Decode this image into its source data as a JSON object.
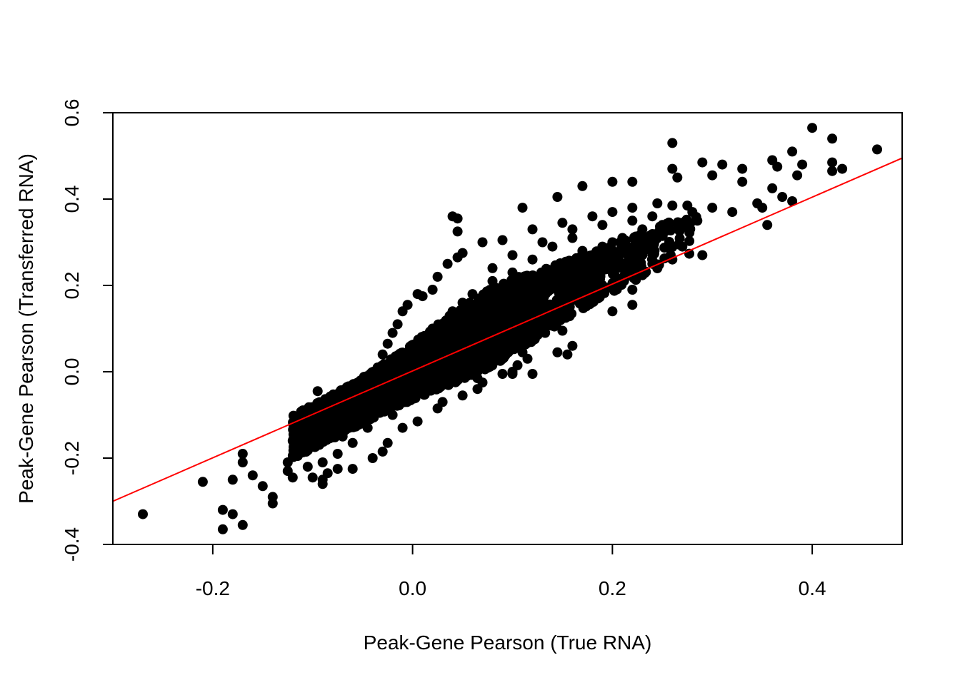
{
  "chart_data": {
    "type": "scatter",
    "title": "",
    "xlabel": "Peak-Gene Pearson (True RNA)",
    "ylabel": "Peak-Gene Pearson (Transferred RNA)",
    "xlim": [
      -0.3,
      0.49
    ],
    "ylim": [
      -0.4,
      0.6
    ],
    "x_ticks": [
      -0.2,
      0.0,
      0.2,
      0.4
    ],
    "x_tick_labels": [
      "-0.2",
      "0.0",
      "0.2",
      "0.4"
    ],
    "y_ticks": [
      -0.4,
      -0.2,
      0.0,
      0.2,
      0.4,
      0.6
    ],
    "y_tick_labels": [
      "-0.4",
      "-0.2",
      "0.0",
      "0.2",
      "0.4",
      "0.6"
    ],
    "grid": false,
    "legend": "none",
    "point_color": "#000000",
    "fit_line": {
      "color": "#ff0000",
      "points": [
        [
          -0.3,
          -0.3
        ],
        [
          0.49,
          0.495
        ]
      ]
    },
    "series": [
      {
        "points": [
          [
            -0.27,
            -0.33
          ],
          [
            -0.21,
            -0.255
          ],
          [
            -0.19,
            -0.365
          ],
          [
            -0.19,
            -0.32
          ],
          [
            -0.18,
            -0.33
          ],
          [
            -0.17,
            -0.355
          ],
          [
            -0.18,
            -0.25
          ],
          [
            -0.17,
            -0.21
          ],
          [
            -0.16,
            -0.24
          ],
          [
            -0.14,
            -0.305
          ],
          [
            -0.14,
            -0.29
          ],
          [
            -0.095,
            -0.045
          ],
          [
            -0.15,
            -0.265
          ],
          [
            -0.17,
            -0.19
          ],
          [
            0.04,
            0.36
          ],
          [
            0.045,
            0.355
          ],
          [
            0.045,
            0.325
          ],
          [
            0.11,
            0.38
          ],
          [
            0.145,
            0.405
          ],
          [
            0.17,
            0.43
          ],
          [
            0.2,
            0.44
          ],
          [
            0.22,
            0.44
          ],
          [
            0.26,
            0.53
          ],
          [
            0.26,
            0.47
          ],
          [
            0.265,
            0.45
          ],
          [
            0.29,
            0.485
          ],
          [
            0.3,
            0.455
          ],
          [
            0.31,
            0.48
          ],
          [
            0.33,
            0.47
          ],
          [
            0.33,
            0.44
          ],
          [
            0.345,
            0.39
          ],
          [
            0.36,
            0.49
          ],
          [
            0.365,
            0.475
          ],
          [
            0.38,
            0.51
          ],
          [
            0.39,
            0.48
          ],
          [
            0.385,
            0.455
          ],
          [
            0.36,
            0.425
          ],
          [
            0.37,
            0.405
          ],
          [
            0.38,
            0.395
          ],
          [
            0.4,
            0.565
          ],
          [
            0.42,
            0.54
          ],
          [
            0.42,
            0.485
          ],
          [
            0.42,
            0.465
          ],
          [
            0.43,
            0.47
          ],
          [
            0.465,
            0.515
          ],
          [
            0.3,
            0.38
          ],
          [
            0.32,
            0.37
          ],
          [
            0.35,
            0.38
          ],
          [
            0.355,
            0.34
          ],
          [
            0.285,
            0.35
          ],
          [
            0.29,
            0.27
          ],
          [
            0.27,
            0.29
          ],
          [
            0.26,
            0.26
          ],
          [
            0.22,
            0.19
          ],
          [
            0.22,
            0.155
          ],
          [
            0.2,
            0.14
          ],
          [
            0.175,
            0.155
          ],
          [
            0.17,
            0.16
          ],
          [
            0.15,
            0.14
          ],
          [
            0.15,
            0.095
          ],
          [
            0.13,
            0.1
          ],
          [
            0.16,
            0.06
          ],
          [
            0.155,
            0.04
          ],
          [
            0.145,
            0.045
          ],
          [
            0.115,
            0.03
          ],
          [
            0.11,
            0.045
          ],
          [
            0.105,
            0.015
          ],
          [
            0.1,
            0.0
          ],
          [
            0.12,
            -0.005
          ],
          [
            0.1,
            -0.005
          ],
          [
            0.09,
            -0.005
          ],
          [
            0.065,
            -0.015
          ],
          [
            0.07,
            -0.025
          ],
          [
            0.065,
            -0.04
          ],
          [
            0.05,
            -0.055
          ],
          [
            0.03,
            -0.07
          ],
          [
            0.025,
            -0.085
          ],
          [
            0.005,
            -0.115
          ],
          [
            -0.01,
            -0.13
          ],
          [
            -0.025,
            -0.165
          ],
          [
            -0.03,
            -0.185
          ],
          [
            -0.04,
            -0.2
          ],
          [
            -0.06,
            -0.225
          ],
          [
            -0.075,
            -0.225
          ],
          [
            -0.085,
            -0.235
          ],
          [
            -0.09,
            -0.25
          ],
          [
            -0.09,
            -0.26
          ],
          [
            -0.1,
            -0.245
          ],
          [
            -0.12,
            -0.245
          ],
          [
            -0.125,
            -0.23
          ],
          [
            -0.125,
            -0.21
          ],
          [
            -0.115,
            -0.195
          ],
          [
            -0.12,
            -0.16
          ],
          [
            -0.11,
            -0.12
          ],
          [
            -0.1,
            -0.115
          ],
          [
            -0.09,
            -0.09
          ],
          [
            -0.07,
            -0.06
          ],
          [
            -0.055,
            -0.045
          ],
          [
            -0.04,
            -0.015
          ],
          [
            -0.035,
            0.01
          ],
          [
            -0.03,
            0.04
          ],
          [
            -0.025,
            0.065
          ],
          [
            -0.02,
            0.09
          ],
          [
            -0.015,
            0.11
          ],
          [
            -0.01,
            0.14
          ],
          [
            -0.005,
            0.155
          ],
          [
            0.005,
            0.18
          ],
          [
            0.01,
            0.175
          ],
          [
            0.02,
            0.19
          ],
          [
            0.025,
            0.22
          ],
          [
            0.035,
            0.25
          ],
          [
            0.045,
            0.265
          ],
          [
            0.05,
            0.275
          ],
          [
            0.07,
            0.3
          ],
          [
            0.09,
            0.305
          ],
          [
            0.12,
            0.33
          ],
          [
            0.15,
            0.345
          ],
          [
            0.18,
            0.36
          ],
          [
            0.2,
            0.37
          ],
          [
            0.22,
            0.38
          ],
          [
            0.245,
            0.39
          ],
          [
            0.26,
            0.385
          ],
          [
            0.275,
            0.385
          ],
          [
            0.28,
            0.37
          ],
          [
            0.25,
            0.32
          ],
          [
            0.235,
            0.3
          ],
          [
            0.23,
            0.27
          ],
          [
            0.24,
            0.25
          ],
          [
            0.205,
            0.24
          ],
          [
            0.185,
            0.195
          ],
          [
            0.175,
            0.205
          ],
          [
            0.165,
            0.18
          ],
          [
            0.13,
            0.15
          ],
          [
            0.12,
            0.125
          ],
          [
            0.1,
            0.09
          ],
          [
            0.08,
            0.06
          ],
          [
            0.06,
            0.02
          ],
          [
            0.04,
            -0.01
          ],
          [
            0.02,
            -0.035
          ],
          [
            0.0,
            -0.06
          ],
          [
            -0.02,
            -0.1
          ],
          [
            -0.045,
            -0.13
          ],
          [
            -0.06,
            -0.165
          ],
          [
            -0.075,
            -0.19
          ],
          [
            -0.09,
            -0.21
          ],
          [
            -0.105,
            -0.22
          ],
          [
            -0.11,
            -0.175
          ],
          [
            -0.1,
            -0.15
          ],
          [
            -0.08,
            -0.12
          ],
          [
            -0.06,
            -0.09
          ],
          [
            -0.04,
            -0.06
          ],
          [
            -0.02,
            -0.03
          ],
          [
            0.0,
            0.0
          ],
          [
            0.02,
            0.03
          ],
          [
            0.04,
            0.06
          ],
          [
            0.06,
            0.09
          ],
          [
            0.08,
            0.12
          ],
          [
            0.1,
            0.15
          ],
          [
            0.12,
            0.18
          ],
          [
            0.14,
            0.21
          ],
          [
            0.16,
            0.24
          ],
          [
            0.18,
            0.27
          ],
          [
            0.2,
            0.3
          ],
          [
            0.0,
            0.05
          ],
          [
            0.02,
            0.1
          ],
          [
            0.04,
            0.14
          ],
          [
            0.06,
            0.18
          ],
          [
            0.08,
            0.21
          ],
          [
            0.1,
            0.23
          ],
          [
            0.12,
            0.26
          ],
          [
            0.14,
            0.29
          ],
          [
            0.16,
            0.31
          ],
          [
            0.06,
            0.12
          ],
          [
            0.07,
            0.16
          ],
          [
            0.09,
            0.19
          ],
          [
            0.11,
            0.2
          ],
          [
            0.13,
            0.22
          ],
          [
            0.15,
            0.25
          ],
          [
            0.17,
            0.28
          ],
          [
            0.19,
            0.29
          ],
          [
            0.21,
            0.31
          ],
          [
            0.23,
            0.33
          ],
          [
            0.25,
            0.34
          ],
          [
            0.03,
            0.02
          ],
          [
            0.05,
            0.04
          ],
          [
            0.07,
            0.07
          ],
          [
            0.09,
            0.1
          ],
          [
            0.11,
            0.13
          ],
          [
            0.13,
            0.16
          ],
          [
            -0.01,
            0.02
          ],
          [
            -0.03,
            -0.02
          ],
          [
            -0.05,
            -0.05
          ],
          [
            -0.07,
            -0.09
          ],
          [
            -0.09,
            -0.13
          ],
          [
            -0.07,
            -0.15
          ],
          [
            -0.05,
            -0.12
          ],
          [
            -0.03,
            -0.08
          ],
          [
            -0.01,
            -0.05
          ],
          [
            0.01,
            -0.02
          ],
          [
            0.03,
            0.1
          ],
          [
            0.05,
            0.16
          ],
          [
            0.08,
            0.24
          ],
          [
            0.1,
            0.27
          ],
          [
            0.13,
            0.3
          ],
          [
            0.16,
            0.33
          ],
          [
            0.19,
            0.34
          ],
          [
            0.22,
            0.35
          ],
          [
            0.24,
            0.36
          ],
          [
            0.27,
            0.34
          ]
        ]
      }
    ]
  }
}
